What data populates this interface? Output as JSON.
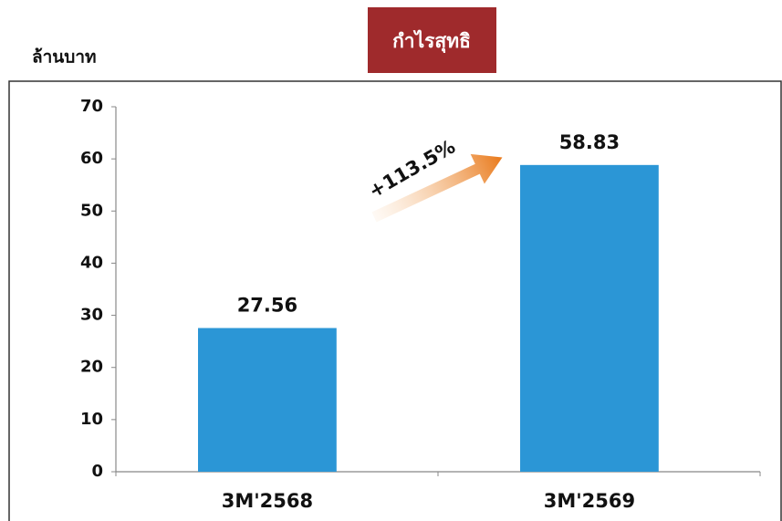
{
  "chart_data": {
    "type": "bar",
    "title": "กำไรสุทธิ",
    "y_label": "ล้านบาท",
    "categories": [
      "3M'2568",
      "3M'2569"
    ],
    "values": [
      27.56,
      58.83
    ],
    "color": "#2b96d6",
    "ylim": [
      0,
      70
    ],
    "yticks": [
      0,
      10,
      20,
      30,
      40,
      50,
      60,
      70
    ],
    "grid": false,
    "annotation": "+113.5%"
  }
}
